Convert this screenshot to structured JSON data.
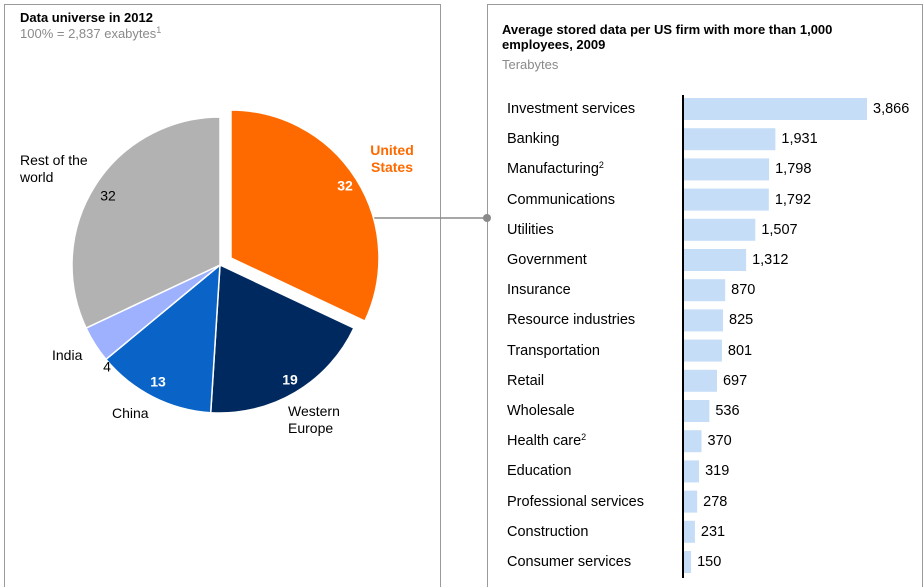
{
  "chart_data": [
    {
      "type": "pie",
      "title": "Data universe in 2012",
      "subtitle": "100% = 2,837 exabytes",
      "subtitle_footnote": "1",
      "categories": [
        "United States",
        "Western Europe",
        "China",
        "India",
        "Rest of the world"
      ],
      "values": [
        32,
        19,
        13,
        4,
        32
      ],
      "colors": [
        "#ff6a00",
        "#002960",
        "#0a64c8",
        "#9db1ff",
        "#b2b2b2"
      ],
      "exploded": "United States"
    },
    {
      "type": "hbar",
      "title": "Average stored data per US firm with more than 1,000 employees, 2009",
      "subtitle": "Terabytes",
      "categories": [
        "Investment services",
        "Banking",
        "Manufacturing",
        "Communications",
        "Utilities",
        "Government",
        "Insurance",
        "Resource industries",
        "Transportation",
        "Retail",
        "Wholesale",
        "Health care",
        "Education",
        "Professional services",
        "Construction",
        "Consumer services"
      ],
      "category_footnotes": [
        null,
        null,
        "2",
        null,
        null,
        null,
        null,
        null,
        null,
        null,
        null,
        "2",
        null,
        null,
        null,
        null
      ],
      "values": [
        3866,
        1931,
        1798,
        1792,
        1507,
        1312,
        870,
        825,
        801,
        697,
        536,
        370,
        319,
        278,
        231,
        150
      ],
      "value_labels": [
        "3,866",
        "1,931",
        "1,798",
        "1,792",
        "1,507",
        "1,312",
        "870",
        "825",
        "801",
        "697",
        "536",
        "370",
        "319",
        "278",
        "231",
        "150"
      ],
      "color": "#c6ddf7"
    }
  ]
}
